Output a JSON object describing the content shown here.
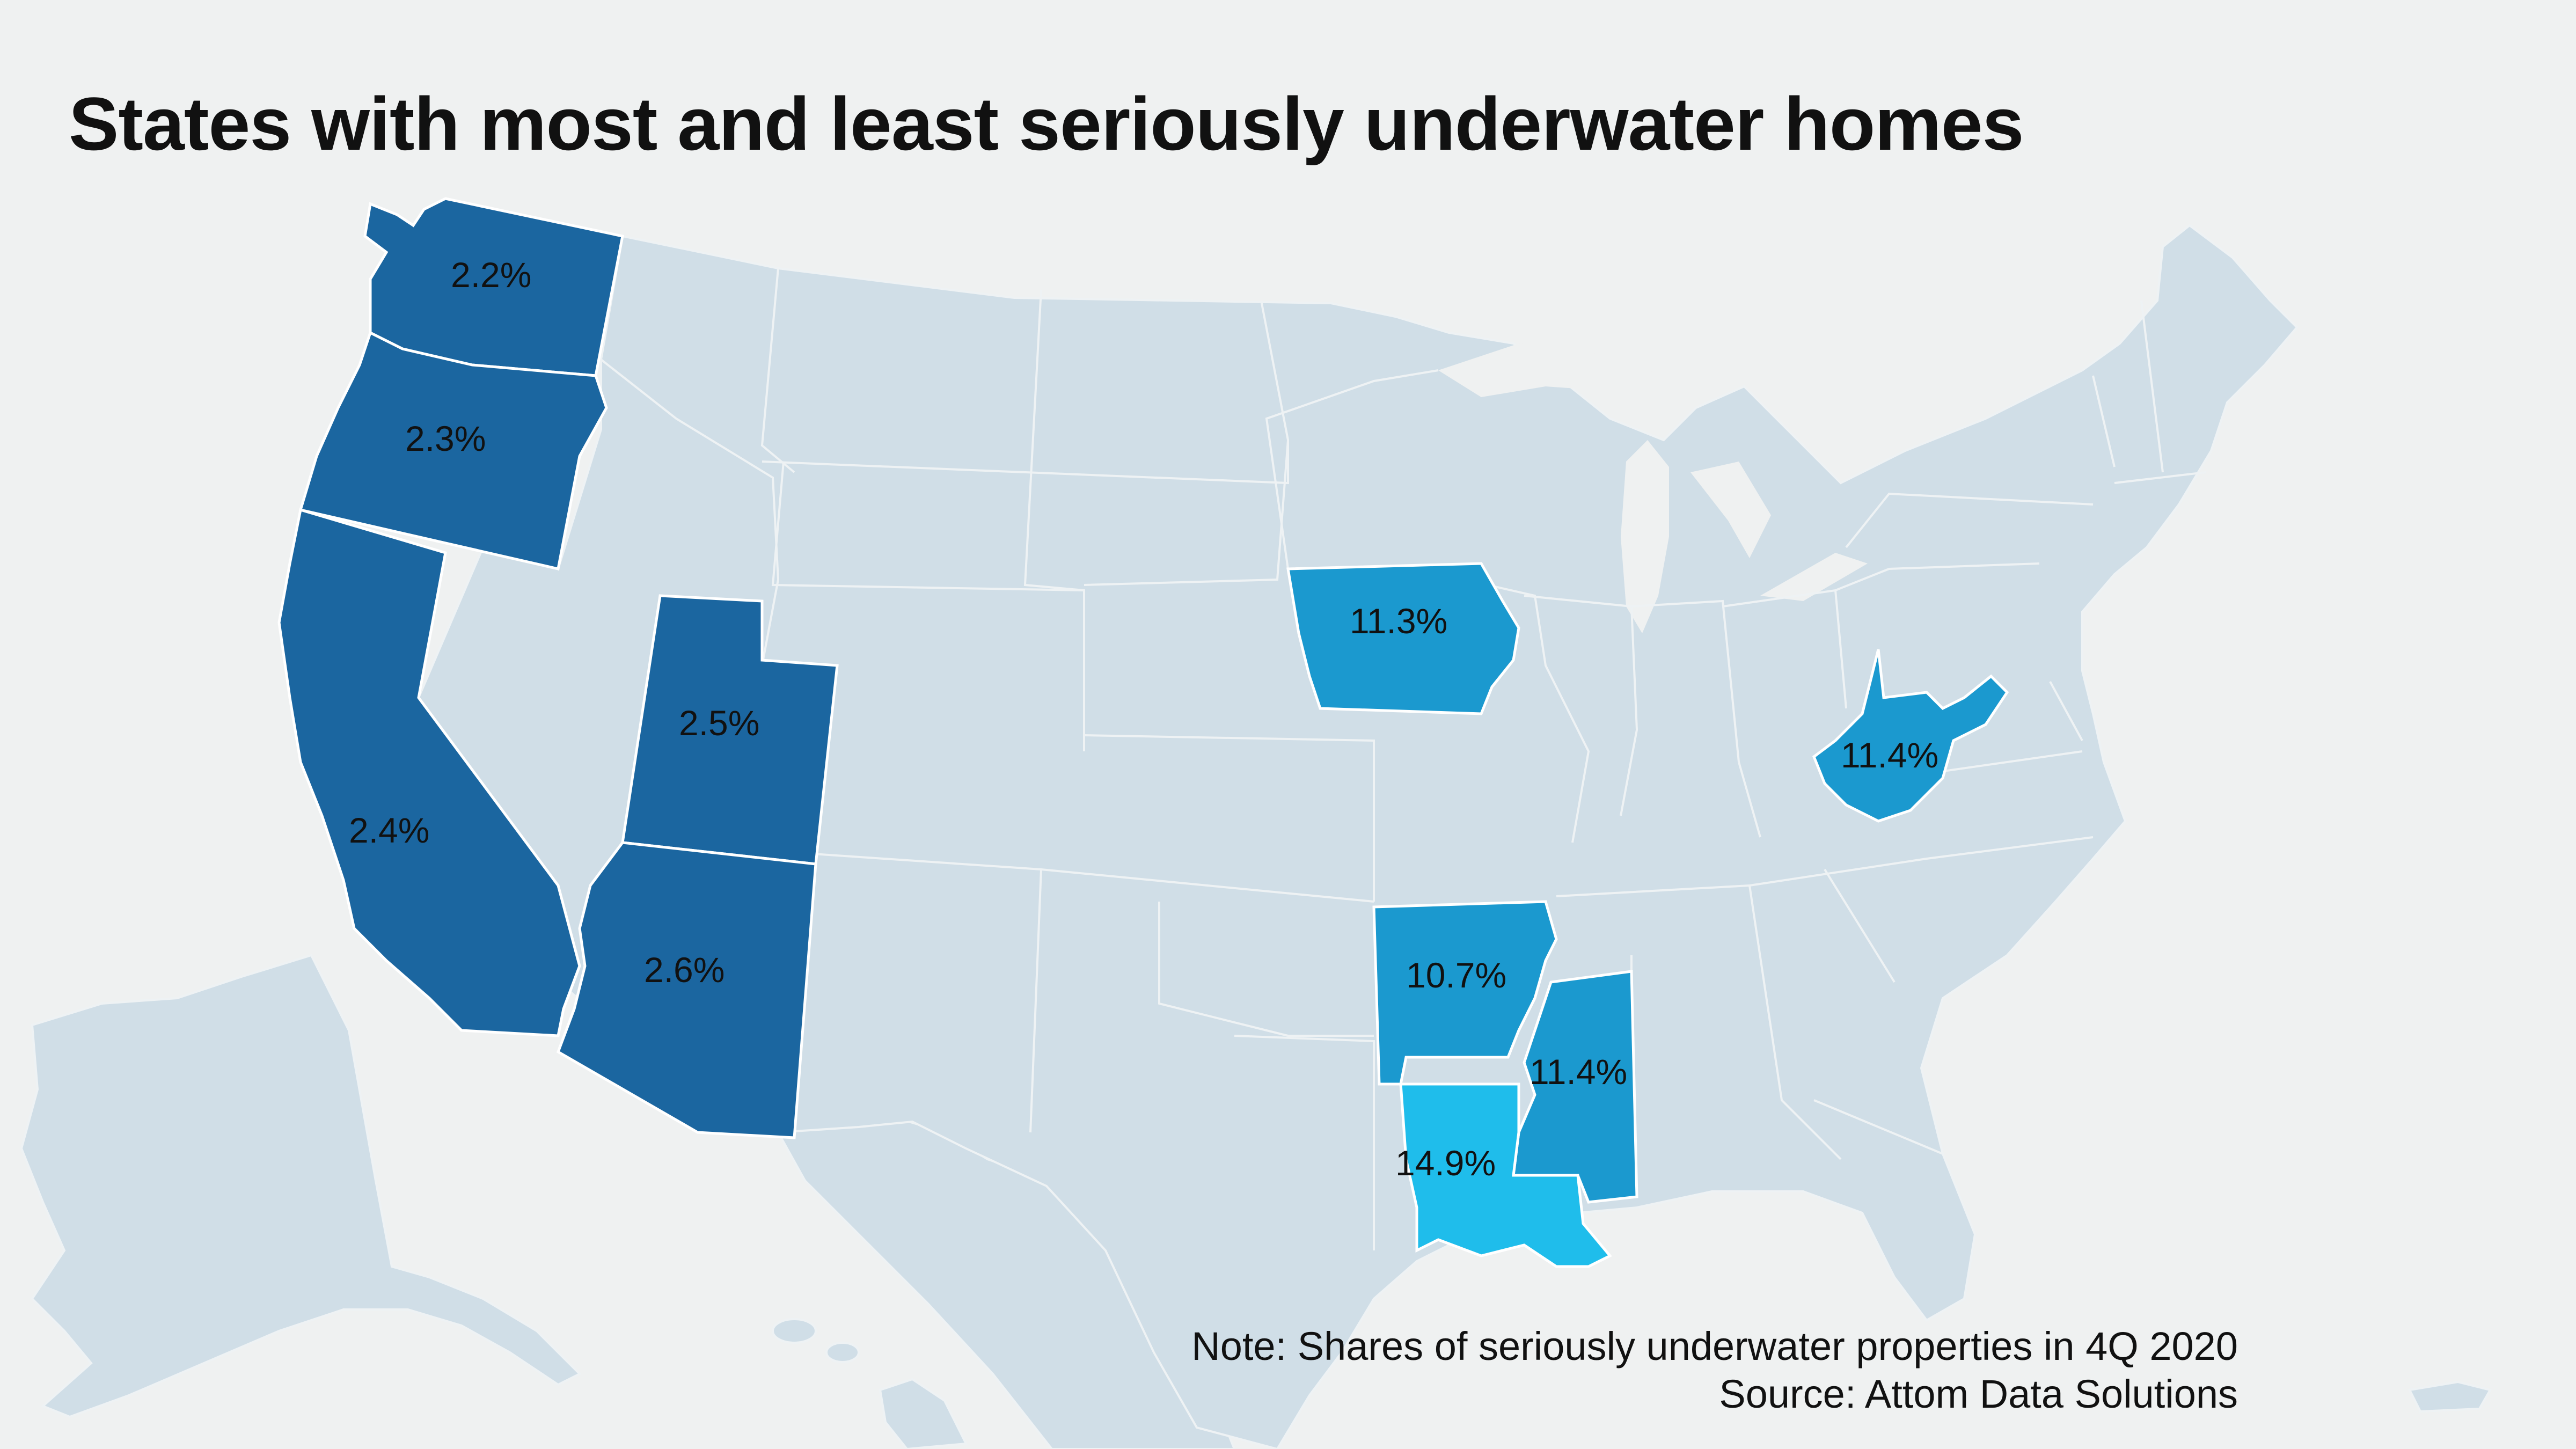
{
  "title": "States with most and least seriously underwater homes",
  "note": "Note: Shares of seriously underwater properties in 4Q 2020",
  "source": "Source: Attom Data Solutions",
  "colors": {
    "background": "#eff1f1",
    "base_state": "#d0dee7",
    "least_underwater": "#1b66a0",
    "most_underwater": "#1b99cf",
    "highest_underwater": "#1fbdeb"
  },
  "states": {
    "washington": {
      "label": "2.2%",
      "value": 2.2
    },
    "oregon": {
      "label": "2.3%",
      "value": 2.3
    },
    "california": {
      "label": "2.4%",
      "value": 2.4
    },
    "utah": {
      "label": "2.5%",
      "value": 2.5
    },
    "arizona": {
      "label": "2.6%",
      "value": 2.6
    },
    "iowa": {
      "label": "11.3%",
      "value": 11.3
    },
    "west_virginia": {
      "label": "11.4%",
      "value": 11.4
    },
    "arkansas": {
      "label": "10.7%",
      "value": 10.7
    },
    "mississippi": {
      "label": "11.4%",
      "value": 11.4
    },
    "louisiana": {
      "label": "14.9%",
      "value": 14.9
    }
  }
}
